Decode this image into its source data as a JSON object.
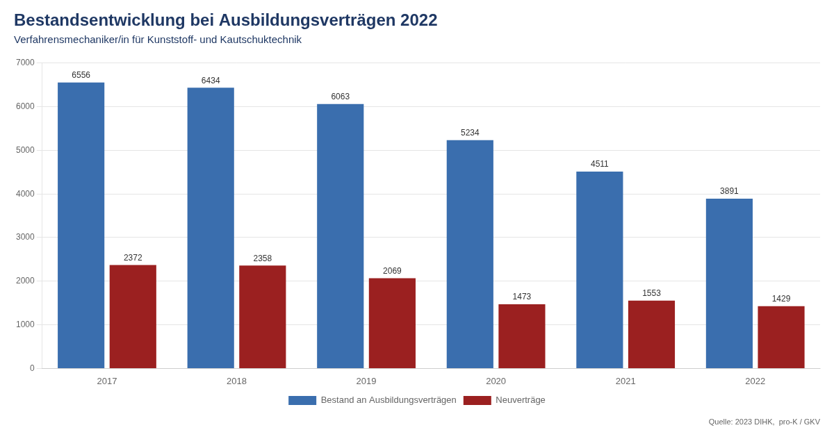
{
  "chart_data": {
    "type": "bar",
    "title": "Bestandsentwicklung bei Ausbildungsverträgen 2022",
    "subtitle": "Verfahrensmechaniker/in für Kunststoff- und Kautschuktechnik",
    "annotations": [
      "Quelle: 2023 DIHK,  pro-K / GKV"
    ],
    "categories": [
      "2017",
      "2018",
      "2019",
      "2020",
      "2021",
      "2022"
    ],
    "series": [
      {
        "name": "Bestand an Ausbildungsverträgen",
        "color": "#3A6EAE",
        "values": [
          6556,
          6434,
          6063,
          5234,
          4511,
          3891
        ]
      },
      {
        "name": "Neuverträge",
        "color": "#9B2020",
        "values": [
          2372,
          2358,
          2069,
          1473,
          1553,
          1429
        ]
      }
    ],
    "ylim": [
      0,
      7000
    ],
    "yticks": [
      0,
      1000,
      2000,
      3000,
      4000,
      5000,
      6000,
      7000
    ],
    "grid": true,
    "legend": "bottom",
    "data_labels": true
  }
}
